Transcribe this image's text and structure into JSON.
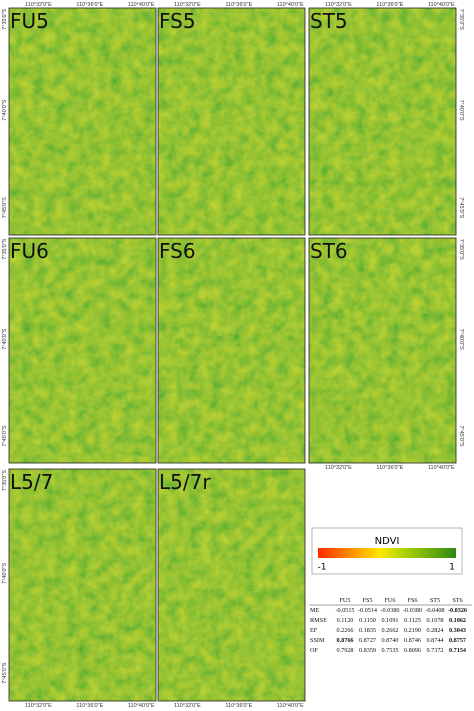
{
  "panels": [
    {
      "label": "FU5"
    },
    {
      "label": "FS5"
    },
    {
      "label": "ST5"
    },
    {
      "label": "FU6"
    },
    {
      "label": "FS6"
    },
    {
      "label": "ST6"
    },
    {
      "label": "L5/7"
    },
    {
      "label": "L5/7r"
    }
  ],
  "coordinates": {
    "longitude": [
      "110°32'0\"E",
      "110°36'0\"E",
      "110°40'0\"E"
    ],
    "latitude": [
      "7°35'0\"S",
      "7°40'0\"S",
      "7°45'0\"S"
    ]
  },
  "legend": {
    "title": "NDVI",
    "min": "-1",
    "max": "1"
  },
  "table": {
    "columns": [
      "FU5",
      "FS5",
      "FU6",
      "FS6",
      "ST5",
      "ST6"
    ],
    "rows": [
      {
        "label": "ME",
        "values": [
          "-0.0515",
          "-0.0514",
          "-0.0380",
          "-0.0380",
          "-0.0408",
          "-0.0326"
        ]
      },
      {
        "label": "RMSE",
        "values": [
          "0.1120",
          "0.1150",
          "0.1091",
          "0.1125",
          "0.1078",
          "0.1062"
        ]
      },
      {
        "label": "EF",
        "values": [
          "0.2266",
          "0.1835",
          "0.2662",
          "0.2190",
          "0.2824",
          "0.3043"
        ]
      },
      {
        "label": "SSIM",
        "values": [
          "0.8766",
          "0.8727",
          "0.8740",
          "0.8746",
          "0.8744",
          "0.8757"
        ]
      },
      {
        "label": "OF",
        "values": [
          "0.7928",
          "0.8359",
          "0.7535",
          "0.8096",
          "0.7372",
          "0.7154"
        ]
      }
    ]
  }
}
